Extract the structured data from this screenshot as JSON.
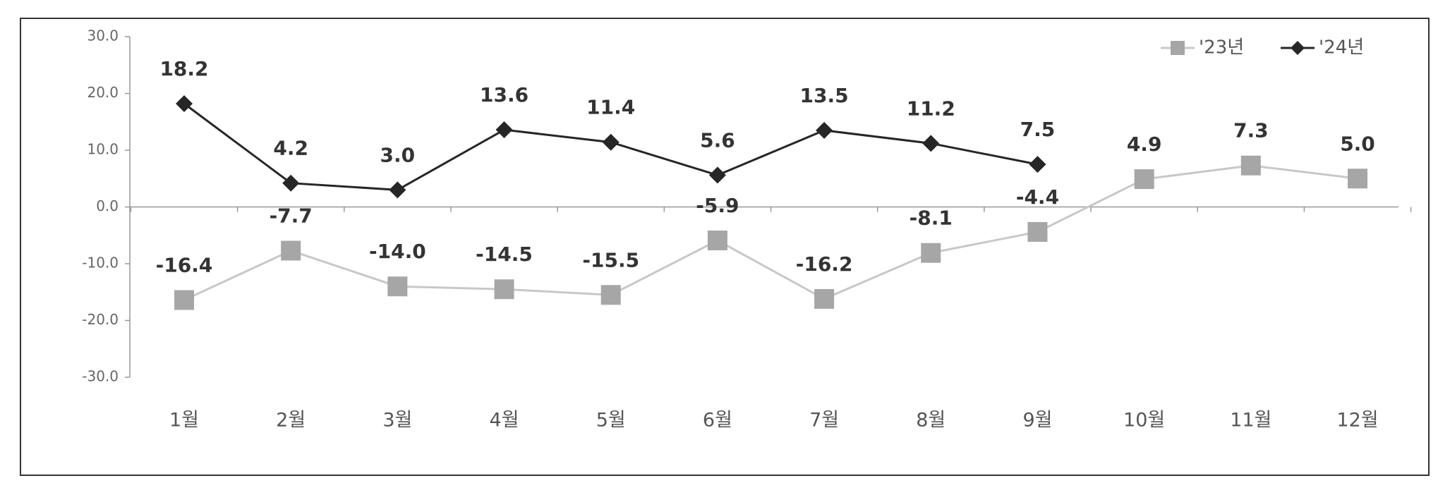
{
  "chart_data": {
    "type": "line",
    "categories": [
      "1월",
      "2월",
      "3월",
      "4월",
      "5월",
      "6월",
      "7월",
      "8월",
      "9월",
      "10월",
      "11월",
      "12월"
    ],
    "series": [
      {
        "name": "'23년",
        "color": "#a6a6a6",
        "marker": "square",
        "values": [
          -16.4,
          -7.7,
          -14.0,
          -14.5,
          -15.5,
          -5.9,
          -16.2,
          -8.1,
          -4.4,
          4.9,
          7.3,
          5.0
        ],
        "value_labels": [
          "-16.4",
          "-7.7",
          "-14.0",
          "-14.5",
          "-15.5",
          "-5.9",
          "-16.2",
          "-8.1",
          "-4.4",
          "4.9",
          "7.3",
          "5.0"
        ]
      },
      {
        "name": "'24년",
        "color": "#262626",
        "marker": "diamond",
        "values": [
          18.2,
          4.2,
          3.0,
          13.6,
          11.4,
          5.6,
          13.5,
          11.2,
          7.5,
          null,
          null,
          null
        ],
        "value_labels": [
          "18.2",
          "4.2",
          "3.0",
          "13.6",
          "11.4",
          "5.6",
          "13.5",
          "11.2",
          "7.5",
          null,
          null,
          null
        ]
      }
    ],
    "ylim": [
      -30,
      30
    ],
    "yticks": [
      {
        "value": -30,
        "label": "-30.0"
      },
      {
        "value": -20,
        "label": "-20.0"
      },
      {
        "value": -10,
        "label": "-10.0"
      },
      {
        "value": 0,
        "label": "0.0"
      },
      {
        "value": 10,
        "label": "10.0"
      },
      {
        "value": 20,
        "label": "20.0"
      },
      {
        "value": 30,
        "label": "30.0"
      }
    ],
    "legend": "top-right",
    "grid": false
  }
}
